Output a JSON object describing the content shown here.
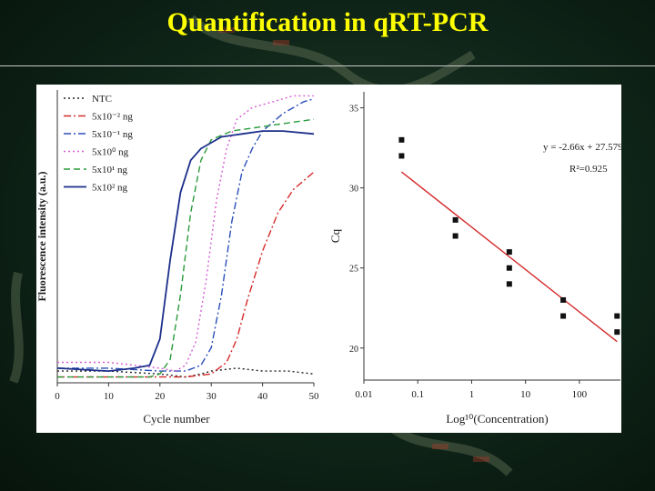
{
  "slide": {
    "title": "Quantification in qRT-PCR"
  },
  "chart_data": [
    {
      "type": "line",
      "xlabel": "Cycle number",
      "ylabel": "Fluorescence intensity (a.u.)",
      "xlim": [
        0,
        50
      ],
      "ylim": [
        0,
        1
      ],
      "x_ticks": [
        "0",
        "10",
        "20",
        "30",
        "40",
        "50"
      ],
      "legend_position": "top-left",
      "series": [
        {
          "name": "NTC",
          "color": "#222222",
          "dash": "dotted",
          "points": [
            [
              0,
              0.04
            ],
            [
              10,
              0.04
            ],
            [
              20,
              0.03
            ],
            [
              25,
              0.02
            ],
            [
              28,
              0.03
            ],
            [
              30,
              0.04
            ],
            [
              35,
              0.05
            ],
            [
              40,
              0.04
            ],
            [
              45,
              0.04
            ],
            [
              50,
              0.03
            ]
          ]
        },
        {
          "name": "5x10⁻² ng",
          "color": "#d42a2a",
          "dash": "dashdot",
          "Ct": 35,
          "points": [
            [
              0,
              0.02
            ],
            [
              15,
              0.02
            ],
            [
              25,
              0.02
            ],
            [
              30,
              0.03
            ],
            [
              33,
              0.07
            ],
            [
              35,
              0.15
            ],
            [
              37,
              0.28
            ],
            [
              40,
              0.45
            ],
            [
              43,
              0.58
            ],
            [
              46,
              0.66
            ],
            [
              50,
              0.72
            ]
          ]
        },
        {
          "name": "5x10⁻¹ ng",
          "color": "#2a4fb8",
          "dash": "dashdot",
          "Ct": 31,
          "points": [
            [
              0,
              0.05
            ],
            [
              10,
              0.05
            ],
            [
              20,
              0.04
            ],
            [
              25,
              0.04
            ],
            [
              28,
              0.06
            ],
            [
              30,
              0.12
            ],
            [
              32,
              0.3
            ],
            [
              34,
              0.55
            ],
            [
              36,
              0.72
            ],
            [
              38,
              0.8
            ],
            [
              40,
              0.86
            ],
            [
              44,
              0.92
            ],
            [
              48,
              0.96
            ],
            [
              50,
              0.97
            ]
          ]
        },
        {
          "name": "5x10⁰ ng",
          "color": "#d45cd4",
          "dash": "dotted",
          "Ct": 28,
          "points": [
            [
              0,
              0.07
            ],
            [
              10,
              0.07
            ],
            [
              20,
              0.05
            ],
            [
              23,
              0.04
            ],
            [
              25,
              0.06
            ],
            [
              27,
              0.14
            ],
            [
              29,
              0.35
            ],
            [
              31,
              0.62
            ],
            [
              33,
              0.8
            ],
            [
              35,
              0.9
            ],
            [
              38,
              0.94
            ],
            [
              42,
              0.96
            ],
            [
              46,
              0.98
            ],
            [
              50,
              0.98
            ]
          ]
        },
        {
          "name": "5x10¹ ng",
          "color": "#2a9a3a",
          "dash": "dashed",
          "Ct": 25,
          "points": [
            [
              0,
              0.02
            ],
            [
              10,
              0.02
            ],
            [
              18,
              0.02
            ],
            [
              20,
              0.03
            ],
            [
              22,
              0.08
            ],
            [
              24,
              0.3
            ],
            [
              26,
              0.58
            ],
            [
              28,
              0.76
            ],
            [
              30,
              0.83
            ],
            [
              34,
              0.86
            ],
            [
              38,
              0.87
            ],
            [
              42,
              0.88
            ],
            [
              46,
              0.89
            ],
            [
              50,
              0.9
            ]
          ]
        },
        {
          "name": "5x10² ng",
          "color": "#1c2f8a",
          "dash": "solid",
          "Ct": 20,
          "points": [
            [
              0,
              0.05
            ],
            [
              10,
              0.04
            ],
            [
              15,
              0.05
            ],
            [
              18,
              0.06
            ],
            [
              20,
              0.15
            ],
            [
              22,
              0.42
            ],
            [
              24,
              0.65
            ],
            [
              26,
              0.76
            ],
            [
              28,
              0.8
            ],
            [
              32,
              0.84
            ],
            [
              36,
              0.85
            ],
            [
              40,
              0.86
            ],
            [
              44,
              0.86
            ],
            [
              50,
              0.85
            ]
          ]
        }
      ]
    },
    {
      "type": "scatter",
      "xlabel": "Log¹⁰(Concentration)",
      "ylabel": "Cq",
      "x_scale": "log",
      "xlim": [
        0.01,
        600
      ],
      "ylim": [
        18,
        36
      ],
      "x_ticks": [
        "0.01",
        "0.1",
        "1",
        "10",
        "100"
      ],
      "y_ticks": [
        "20",
        "25",
        "30",
        "35"
      ],
      "equation": "y = -2.66x + 27.579",
      "r_squared": "R²=0.925",
      "fit_color": "#d42a2a",
      "points": [
        [
          0.05,
          33
        ],
        [
          0.05,
          32
        ],
        [
          0.5,
          28
        ],
        [
          0.5,
          27
        ],
        [
          5,
          26
        ],
        [
          5,
          25
        ],
        [
          5,
          24
        ],
        [
          50,
          23
        ],
        [
          50,
          22
        ],
        [
          500,
          22
        ],
        [
          500,
          21
        ]
      ],
      "fit_line": [
        [
          0.05,
          31
        ],
        [
          500,
          20.4
        ]
      ]
    }
  ]
}
